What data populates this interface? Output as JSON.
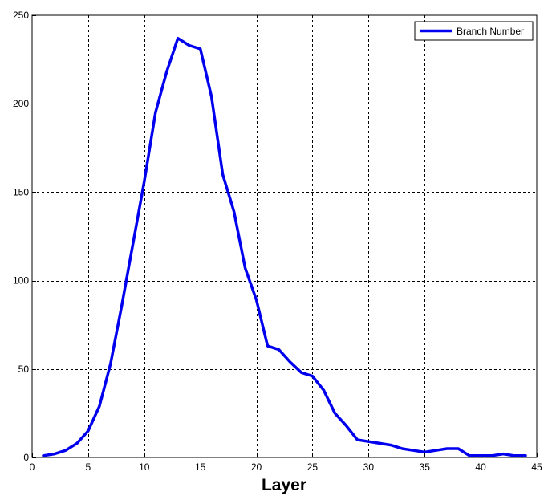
{
  "chart_data": {
    "type": "line",
    "title": "",
    "xlabel": "Layer",
    "ylabel": "",
    "xlim": [
      0,
      45
    ],
    "ylim": [
      0,
      250
    ],
    "xticks": [
      0,
      5,
      10,
      15,
      20,
      25,
      30,
      35,
      40,
      45
    ],
    "yticks": [
      0,
      50,
      100,
      150,
      200,
      250
    ],
    "grid": true,
    "legend_position": "top-right",
    "series": [
      {
        "name": "Branch Number",
        "color": "#0000ee",
        "x": [
          1,
          2,
          3,
          4,
          5,
          6,
          7,
          8,
          9,
          10,
          11,
          12,
          13,
          14,
          15,
          16,
          17,
          18,
          19,
          20,
          21,
          22,
          23,
          24,
          25,
          26,
          27,
          28,
          29,
          30,
          31,
          32,
          33,
          34,
          35,
          36,
          37,
          38,
          39,
          40,
          41,
          42,
          43,
          44
        ],
        "y": [
          1,
          2,
          4,
          8,
          15,
          29,
          53,
          86,
          121,
          156,
          195,
          218,
          237,
          233,
          231,
          204,
          160,
          139,
          107,
          89,
          63,
          61,
          54,
          48,
          46,
          38,
          25,
          18,
          10,
          9,
          8,
          7,
          5,
          4,
          3,
          4,
          5,
          5,
          1,
          1,
          1,
          2,
          1,
          1
        ]
      }
    ]
  }
}
